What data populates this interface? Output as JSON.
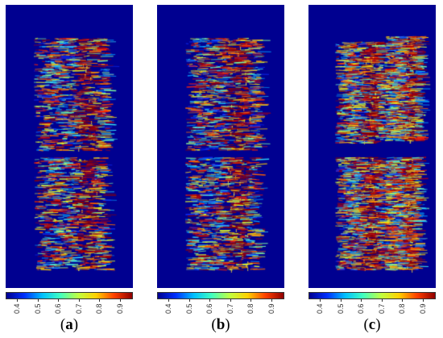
{
  "panels": [
    {
      "id": "a",
      "caption_open": "(",
      "caption_letter": "a",
      "caption_close": ")"
    },
    {
      "id": "b",
      "caption_open": "(",
      "caption_letter": "b",
      "caption_close": ")"
    },
    {
      "id": "c",
      "caption_open": "(",
      "caption_letter": "c",
      "caption_close": ")"
    }
  ],
  "colorbar": {
    "ticks": [
      "0.4",
      "0.5",
      "0.6",
      "0.7",
      "0.8",
      "0.9"
    ],
    "colors": [
      "#000090",
      "#0030ff",
      "#00c0ff",
      "#40ffc0",
      "#c0ff40",
      "#ffd000",
      "#ff4000",
      "#900000"
    ]
  },
  "colors": {
    "background": "#000090"
  }
}
